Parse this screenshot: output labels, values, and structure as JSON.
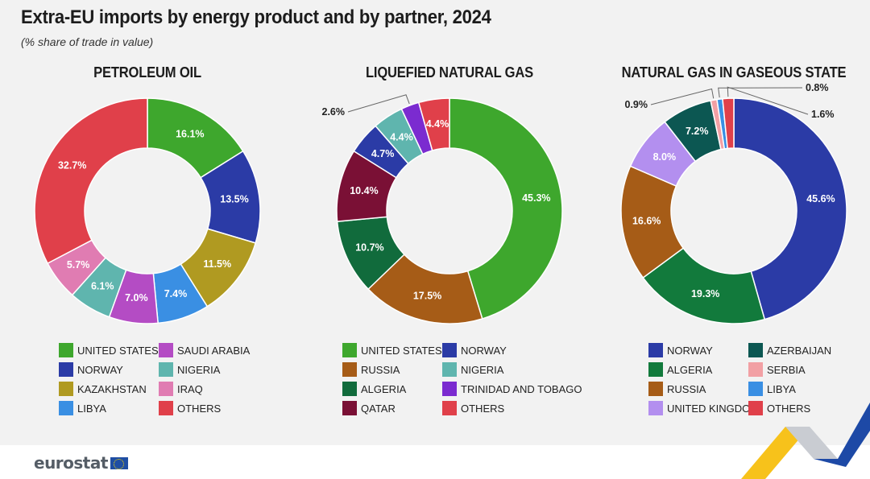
{
  "title": "Extra-EU imports by energy product and by partner, 2024",
  "subtitle": "(% share of trade in value)",
  "logo_text": "eurostat",
  "chart_data": [
    {
      "type": "pie",
      "donut": true,
      "title": "PETROLEUM OIL",
      "slices": [
        {
          "label": "UNITED STATES",
          "value": 16.1,
          "display": "16.1%",
          "color": "#3ea72d"
        },
        {
          "label": "NORWAY",
          "value": 13.5,
          "display": "13.5%",
          "color": "#2b3ba6"
        },
        {
          "label": "KAZAKHSTAN",
          "value": 11.5,
          "display": "11.5%",
          "color": "#b09a21"
        },
        {
          "label": "LIBYA",
          "value": 7.4,
          "display": "7.4%",
          "color": "#3a8fe3"
        },
        {
          "label": "SAUDI ARABIA",
          "value": 7.0,
          "display": "7.0%",
          "color": "#b44cc4"
        },
        {
          "label": "NIGERIA",
          "value": 6.1,
          "display": "6.1%",
          "color": "#5fb5ae"
        },
        {
          "label": "IRAQ",
          "value": 5.7,
          "display": "5.7%",
          "color": "#e07cb2"
        },
        {
          "label": "OTHERS",
          "value": 32.7,
          "display": "32.7%",
          "color": "#e0404a"
        }
      ],
      "legend_order": [
        "UNITED STATES",
        "NORWAY",
        "KAZAKHSTAN",
        "LIBYA",
        "SAUDI ARABIA",
        "NIGERIA",
        "IRAQ",
        "OTHERS"
      ]
    },
    {
      "type": "pie",
      "donut": true,
      "title": "LIQUEFIED NATURAL GAS",
      "slices": [
        {
          "label": "UNITED STATES",
          "value": 45.3,
          "display": "45.3%",
          "color": "#3ea72d"
        },
        {
          "label": "RUSSIA",
          "value": 17.5,
          "display": "17.5%",
          "color": "#a65c17"
        },
        {
          "label": "ALGERIA",
          "value": 10.7,
          "display": "10.7%",
          "color": "#116b3c"
        },
        {
          "label": "QATAR",
          "value": 10.4,
          "display": "10.4%",
          "color": "#7a1035"
        },
        {
          "label": "NORWAY",
          "value": 4.7,
          "display": "4.7%",
          "color": "#2b3ba6"
        },
        {
          "label": "NIGERIA",
          "value": 4.4,
          "display": "4.4%",
          "color": "#5fb5ae"
        },
        {
          "label": "TRINIDAD AND TOBAGO",
          "value": 2.6,
          "display": "2.6%",
          "color": "#7b2bd0"
        },
        {
          "label": "OTHERS",
          "value": 4.4,
          "display": "4.4%",
          "color": "#e0404a"
        }
      ],
      "legend_order": [
        "UNITED STATES",
        "RUSSIA",
        "ALGERIA",
        "QATAR",
        "NORWAY",
        "NIGERIA",
        "TRINIDAD AND TOBAGO",
        "OTHERS"
      ]
    },
    {
      "type": "pie",
      "donut": true,
      "title": "NATURAL GAS IN GASEOUS STATE",
      "slices": [
        {
          "label": "NORWAY",
          "value": 45.6,
          "display": "45.6%",
          "color": "#2b3ba6"
        },
        {
          "label": "ALGERIA",
          "value": 19.3,
          "display": "19.3%",
          "color": "#127a3c"
        },
        {
          "label": "RUSSIA",
          "value": 16.6,
          "display": "16.6%",
          "color": "#a65c17"
        },
        {
          "label": "UNITED KINGDOM",
          "value": 8.0,
          "display": "8.0%",
          "color": "#b38fef"
        },
        {
          "label": "AZERBAIJAN",
          "value": 7.2,
          "display": "7.2%",
          "color": "#0c5752"
        },
        {
          "label": "SERBIA",
          "value": 0.9,
          "display": "0.9%",
          "color": "#f2a0a4"
        },
        {
          "label": "LIBYA",
          "value": 0.8,
          "display": "0.8%",
          "color": "#3a8fe3"
        },
        {
          "label": "OTHERS",
          "value": 1.6,
          "display": "1.6%",
          "color": "#e0404a"
        }
      ],
      "legend_order": [
        "NORWAY",
        "ALGERIA",
        "RUSSIA",
        "UNITED KINGDOM",
        "AZERBAIJAN",
        "SERBIA",
        "LIBYA",
        "OTHERS"
      ]
    }
  ]
}
